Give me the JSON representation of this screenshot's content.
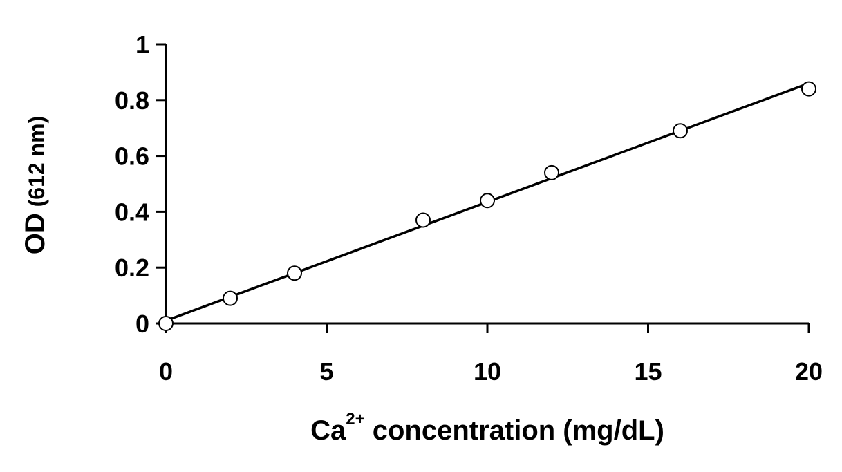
{
  "chart_data": {
    "type": "scatter",
    "title": "",
    "xlabel": {
      "base": "Ca",
      "superscript": "2+",
      "rest": " concentration (mg/dL)"
    },
    "ylabel": {
      "main": "OD",
      "unit": " (612 nm)"
    },
    "xlim": [
      0,
      20
    ],
    "ylim": [
      0,
      1
    ],
    "x_ticks": [
      0,
      5,
      10,
      15,
      20
    ],
    "y_ticks": [
      0,
      0.2,
      0.4,
      0.6,
      0.8,
      1
    ],
    "x_tick_labels": [
      "0",
      "5",
      "10",
      "15",
      "20"
    ],
    "y_tick_labels": [
      "0",
      "0.2",
      "0.4",
      "0.6",
      "0.8",
      "1"
    ],
    "grid": false,
    "legend": "none",
    "series": [
      {
        "points": [
          {
            "x": 0,
            "y": 0.0
          },
          {
            "x": 2,
            "y": 0.09
          },
          {
            "x": 4,
            "y": 0.18
          },
          {
            "x": 8,
            "y": 0.37
          },
          {
            "x": 10,
            "y": 0.44
          },
          {
            "x": 12,
            "y": 0.54
          },
          {
            "x": 16,
            "y": 0.69
          },
          {
            "x": 20,
            "y": 0.84
          }
        ],
        "marker": "open-circle",
        "color": "#000000"
      }
    ],
    "trendline": {
      "type": "linear",
      "from": {
        "x": 0,
        "y": 0.01
      },
      "to": {
        "x": 20,
        "y": 0.86
      },
      "color": "#000000"
    }
  }
}
